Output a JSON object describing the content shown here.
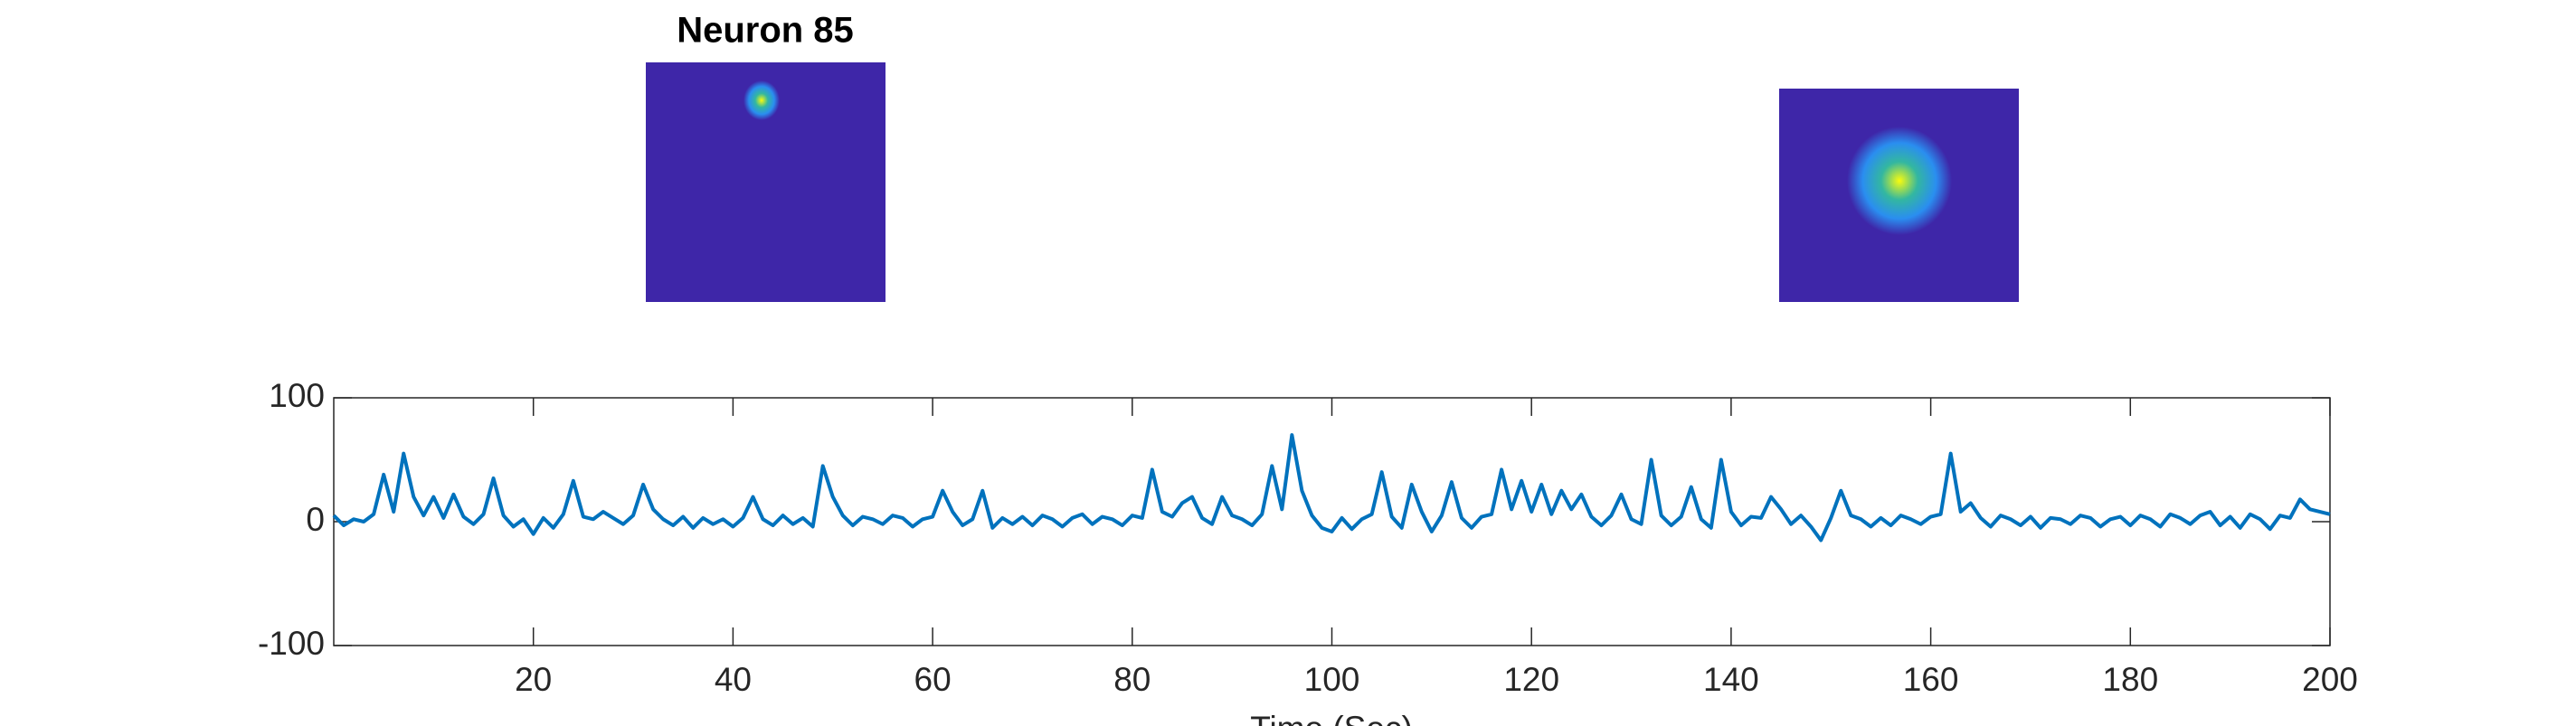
{
  "chart_data": {
    "type": "line",
    "title": "Neuron 85",
    "xlabel": "Time (Sec)",
    "xlim": [
      0,
      200
    ],
    "ylim": [
      -100,
      100
    ],
    "xticks": [
      20,
      40,
      60,
      80,
      100,
      120,
      140,
      160,
      180,
      200
    ],
    "yticks": [
      -100,
      0,
      100
    ],
    "x": [
      0,
      1,
      2,
      3,
      4,
      5,
      6,
      7,
      8,
      9,
      10,
      11,
      12,
      13,
      14,
      15,
      16,
      17,
      18,
      19,
      20,
      21,
      22,
      23,
      24,
      25,
      26,
      27,
      28,
      29,
      30,
      31,
      32,
      33,
      34,
      35,
      36,
      37,
      38,
      39,
      40,
      41,
      42,
      43,
      44,
      45,
      46,
      47,
      48,
      49,
      50,
      51,
      52,
      53,
      54,
      55,
      56,
      57,
      58,
      59,
      60,
      61,
      62,
      63,
      64,
      65,
      66,
      67,
      68,
      69,
      70,
      71,
      72,
      73,
      74,
      75,
      76,
      77,
      78,
      79,
      80,
      81,
      82,
      83,
      84,
      85,
      86,
      87,
      88,
      89,
      90,
      91,
      92,
      93,
      94,
      95,
      96,
      97,
      98,
      99,
      100,
      101,
      102,
      103,
      104,
      105,
      106,
      107,
      108,
      109,
      110,
      111,
      112,
      113,
      114,
      115,
      116,
      117,
      118,
      119,
      120,
      121,
      122,
      123,
      124,
      125,
      126,
      127,
      128,
      129,
      130,
      131,
      132,
      133,
      134,
      135,
      136,
      137,
      138,
      139,
      140,
      141,
      142,
      143,
      144,
      145,
      146,
      147,
      148,
      149,
      150,
      151,
      152,
      153,
      154,
      155,
      156,
      157,
      158,
      159,
      160,
      161,
      162,
      163,
      164,
      165,
      166,
      167,
      168,
      169,
      170,
      171,
      172,
      173,
      174,
      175,
      176,
      177,
      178,
      179,
      180,
      181,
      182,
      183,
      184,
      185,
      186,
      187,
      188,
      189,
      190,
      191,
      192,
      193,
      194,
      195,
      196,
      197,
      198,
      199,
      200
    ],
    "series": [
      {
        "color": "#0072bd",
        "values": [
          5,
          -3,
          2,
          0,
          6,
          38,
          8,
          55,
          20,
          5,
          20,
          3,
          22,
          4,
          -2,
          6,
          35,
          5,
          -4,
          2,
          -10,
          3,
          -5,
          6,
          33,
          4,
          2,
          8,
          3,
          -2,
          5,
          30,
          10,
          2,
          -3,
          4,
          -5,
          3,
          -2,
          2,
          -4,
          3,
          20,
          2,
          -3,
          5,
          -2,
          3,
          -4,
          45,
          20,
          5,
          -3,
          4,
          2,
          -2,
          5,
          3,
          -4,
          2,
          4,
          25,
          8,
          -3,
          2,
          25,
          -5,
          3,
          -2,
          4,
          -3,
          5,
          2,
          -4,
          3,
          6,
          -2,
          4,
          2,
          -3,
          5,
          3,
          42,
          8,
          4,
          15,
          20,
          3,
          -2,
          20,
          5,
          2,
          -3,
          6,
          45,
          10,
          70,
          25,
          5,
          -5,
          -8,
          3,
          -6,
          2,
          6,
          40,
          4,
          -5,
          30,
          8,
          -8,
          5,
          32,
          3,
          -5,
          4,
          6,
          42,
          10,
          33,
          8,
          30,
          6,
          25,
          10,
          22,
          4,
          -3,
          5,
          22,
          2,
          -2,
          50,
          5,
          -3,
          4,
          28,
          2,
          -5,
          50,
          8,
          -3,
          4,
          3,
          20,
          10,
          -2,
          5,
          -4,
          -15,
          3,
          25,
          5,
          2,
          -4,
          3,
          -3,
          5,
          2,
          -2,
          4,
          6,
          55,
          8,
          15,
          3,
          -4,
          5,
          2,
          -3,
          4,
          -5,
          3,
          2,
          -2,
          5,
          3,
          -4,
          2,
          4,
          -3,
          5,
          2,
          -4,
          6,
          3,
          -2,
          5,
          8,
          -3,
          4,
          -5,
          6,
          2,
          -6,
          5,
          3,
          18,
          10,
          8,
          6
        ]
      }
    ]
  }
}
